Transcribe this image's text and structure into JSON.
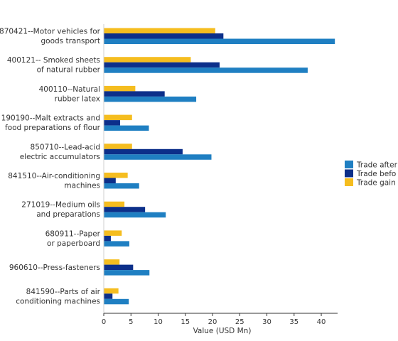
{
  "chart_data": {
    "type": "bar",
    "orientation": "horizontal",
    "categories": [
      [
        "870421--Motor vehicles for",
        "goods transport"
      ],
      [
        "400121-- Smoked sheets",
        "of natural rubber"
      ],
      [
        "400110--Natural",
        "rubber latex"
      ],
      [
        "190190--Malt extracts and",
        "food preparations of flour"
      ],
      [
        "850710--Lead-acid",
        "electric accumulators"
      ],
      [
        "841510--Air-conditioning",
        "machines"
      ],
      [
        "271019--Medium oils",
        "and preparations"
      ],
      [
        "680911--Paper",
        "or paperboard"
      ],
      [
        "960610--Press-fasteners"
      ],
      [
        "841590--Parts of air",
        "conditioning machines"
      ]
    ],
    "series": [
      {
        "name": "Trade gain",
        "color": "#f5bd1f",
        "values": [
          20.5,
          16.0,
          5.8,
          5.2,
          5.2,
          4.4,
          3.8,
          3.3,
          2.9,
          2.7
        ]
      },
      {
        "name": "Trade befo",
        "color": "#0c2f8a",
        "values": [
          22.0,
          21.3,
          11.2,
          3.0,
          14.5,
          2.2,
          7.6,
          1.3,
          5.4,
          1.6
        ]
      },
      {
        "name": "Trade after",
        "color": "#1f7fc2",
        "values": [
          42.5,
          37.5,
          17.0,
          8.3,
          19.8,
          6.5,
          11.4,
          4.7,
          8.4,
          4.6
        ]
      }
    ],
    "legend": {
      "position": "right",
      "entries": [
        {
          "name": "Trade after",
          "color": "#1f7fc2"
        },
        {
          "name": "Trade befo",
          "color": "#0c2f8a"
        },
        {
          "name": "Trade gain",
          "color": "#f5bd1f"
        }
      ]
    },
    "xlabel": "Value (USD Mn)",
    "xlim": [
      0,
      43
    ],
    "xticks": [
      0,
      5,
      10,
      15,
      20,
      25,
      30,
      35,
      40
    ],
    "grid": false
  }
}
